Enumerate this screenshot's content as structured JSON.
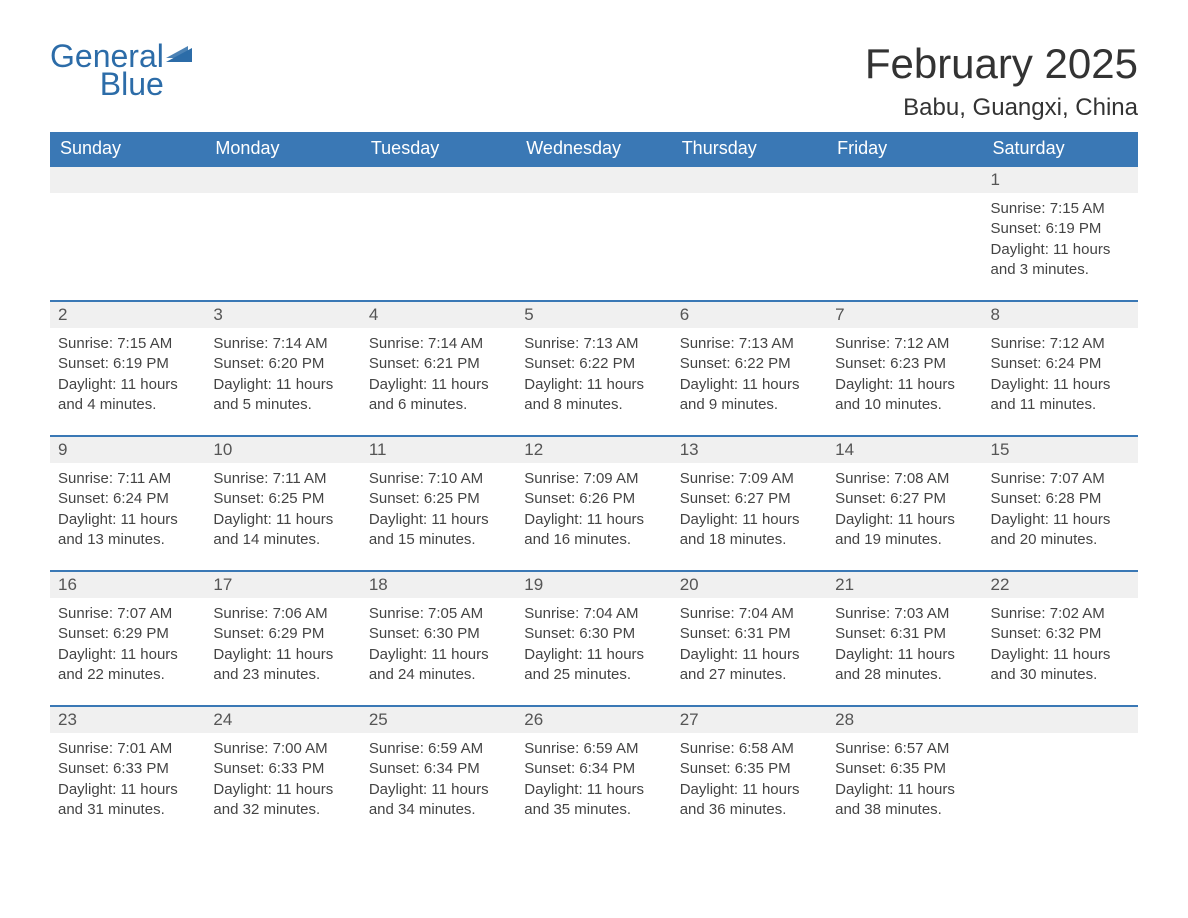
{
  "logo": {
    "line1": "General",
    "line2": "Blue",
    "flag_color": "#2c6ca8",
    "text_color": "#2c6ca8"
  },
  "title": "February 2025",
  "location": "Babu, Guangxi, China",
  "colors": {
    "header_bg": "#3a78b5",
    "header_text": "#ffffff",
    "row_border": "#3a78b5",
    "daynum_bg": "#f0f0f0",
    "body_text": "#444444",
    "background": "#ffffff"
  },
  "fonts": {
    "title_size": 42,
    "location_size": 24,
    "weekday_size": 18,
    "daynum_size": 17,
    "body_size": 15
  },
  "weekdays": [
    "Sunday",
    "Monday",
    "Tuesday",
    "Wednesday",
    "Thursday",
    "Friday",
    "Saturday"
  ],
  "weeks": [
    [
      null,
      null,
      null,
      null,
      null,
      null,
      {
        "n": "1",
        "sunrise": "7:15 AM",
        "sunset": "6:19 PM",
        "daylight": "11 hours and 3 minutes."
      }
    ],
    [
      {
        "n": "2",
        "sunrise": "7:15 AM",
        "sunset": "6:19 PM",
        "daylight": "11 hours and 4 minutes."
      },
      {
        "n": "3",
        "sunrise": "7:14 AM",
        "sunset": "6:20 PM",
        "daylight": "11 hours and 5 minutes."
      },
      {
        "n": "4",
        "sunrise": "7:14 AM",
        "sunset": "6:21 PM",
        "daylight": "11 hours and 6 minutes."
      },
      {
        "n": "5",
        "sunrise": "7:13 AM",
        "sunset": "6:22 PM",
        "daylight": "11 hours and 8 minutes."
      },
      {
        "n": "6",
        "sunrise": "7:13 AM",
        "sunset": "6:22 PM",
        "daylight": "11 hours and 9 minutes."
      },
      {
        "n": "7",
        "sunrise": "7:12 AM",
        "sunset": "6:23 PM",
        "daylight": "11 hours and 10 minutes."
      },
      {
        "n": "8",
        "sunrise": "7:12 AM",
        "sunset": "6:24 PM",
        "daylight": "11 hours and 11 minutes."
      }
    ],
    [
      {
        "n": "9",
        "sunrise": "7:11 AM",
        "sunset": "6:24 PM",
        "daylight": "11 hours and 13 minutes."
      },
      {
        "n": "10",
        "sunrise": "7:11 AM",
        "sunset": "6:25 PM",
        "daylight": "11 hours and 14 minutes."
      },
      {
        "n": "11",
        "sunrise": "7:10 AM",
        "sunset": "6:25 PM",
        "daylight": "11 hours and 15 minutes."
      },
      {
        "n": "12",
        "sunrise": "7:09 AM",
        "sunset": "6:26 PM",
        "daylight": "11 hours and 16 minutes."
      },
      {
        "n": "13",
        "sunrise": "7:09 AM",
        "sunset": "6:27 PM",
        "daylight": "11 hours and 18 minutes."
      },
      {
        "n": "14",
        "sunrise": "7:08 AM",
        "sunset": "6:27 PM",
        "daylight": "11 hours and 19 minutes."
      },
      {
        "n": "15",
        "sunrise": "7:07 AM",
        "sunset": "6:28 PM",
        "daylight": "11 hours and 20 minutes."
      }
    ],
    [
      {
        "n": "16",
        "sunrise": "7:07 AM",
        "sunset": "6:29 PM",
        "daylight": "11 hours and 22 minutes."
      },
      {
        "n": "17",
        "sunrise": "7:06 AM",
        "sunset": "6:29 PM",
        "daylight": "11 hours and 23 minutes."
      },
      {
        "n": "18",
        "sunrise": "7:05 AM",
        "sunset": "6:30 PM",
        "daylight": "11 hours and 24 minutes."
      },
      {
        "n": "19",
        "sunrise": "7:04 AM",
        "sunset": "6:30 PM",
        "daylight": "11 hours and 25 minutes."
      },
      {
        "n": "20",
        "sunrise": "7:04 AM",
        "sunset": "6:31 PM",
        "daylight": "11 hours and 27 minutes."
      },
      {
        "n": "21",
        "sunrise": "7:03 AM",
        "sunset": "6:31 PM",
        "daylight": "11 hours and 28 minutes."
      },
      {
        "n": "22",
        "sunrise": "7:02 AM",
        "sunset": "6:32 PM",
        "daylight": "11 hours and 30 minutes."
      }
    ],
    [
      {
        "n": "23",
        "sunrise": "7:01 AM",
        "sunset": "6:33 PM",
        "daylight": "11 hours and 31 minutes."
      },
      {
        "n": "24",
        "sunrise": "7:00 AM",
        "sunset": "6:33 PM",
        "daylight": "11 hours and 32 minutes."
      },
      {
        "n": "25",
        "sunrise": "6:59 AM",
        "sunset": "6:34 PM",
        "daylight": "11 hours and 34 minutes."
      },
      {
        "n": "26",
        "sunrise": "6:59 AM",
        "sunset": "6:34 PM",
        "daylight": "11 hours and 35 minutes."
      },
      {
        "n": "27",
        "sunrise": "6:58 AM",
        "sunset": "6:35 PM",
        "daylight": "11 hours and 36 minutes."
      },
      {
        "n": "28",
        "sunrise": "6:57 AM",
        "sunset": "6:35 PM",
        "daylight": "11 hours and 38 minutes."
      },
      null
    ]
  ],
  "labels": {
    "sunrise": "Sunrise:",
    "sunset": "Sunset:",
    "daylight": "Daylight:"
  }
}
